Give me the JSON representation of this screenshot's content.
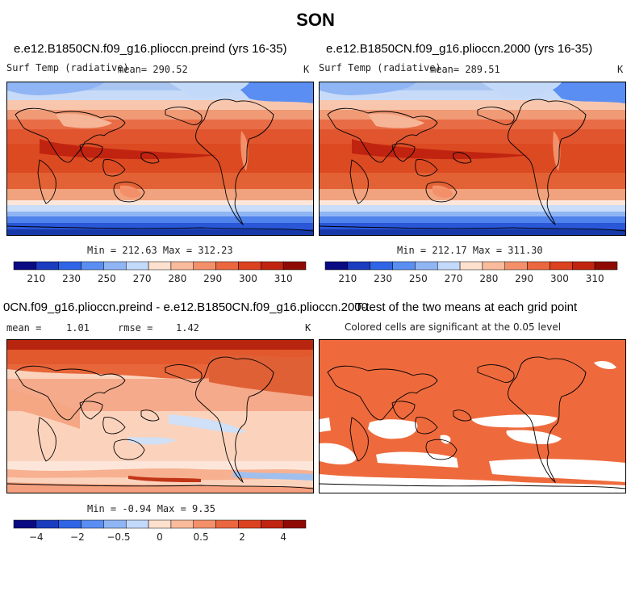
{
  "figure": {
    "title": "SON"
  },
  "chart_data": [
    {
      "type": "heatmap",
      "title": "e.e12.B1850CN.f09_g16.plioccn.preind (yrs 16-35)",
      "variable": "Surf Temp (radiative)",
      "mean_label": "mean= 290.52",
      "units": "K",
      "stats": "Min = 212.63 Max = 312.23",
      "min": 212.63,
      "max": 312.23,
      "mean": 290.52,
      "colorbar_ticks": [
        "210",
        "230",
        "250",
        "270",
        "280",
        "290",
        "300",
        "310"
      ],
      "colorbar_colors": [
        "#0a0a82",
        "#1a3cbe",
        "#2f64e6",
        "#5a8ef2",
        "#8fb5f5",
        "#c3d9fa",
        "#fde0cd",
        "#f9bb9b",
        "#f3906a",
        "#ea6740",
        "#dc4220",
        "#c02410",
        "#8f0a04"
      ]
    },
    {
      "type": "heatmap",
      "title": "e.e12.B1850CN.f09_g16.plioccn.2000 (yrs 16-35)",
      "variable": "Surf Temp (radiative)",
      "mean_label": "mean= 289.51",
      "units": "K",
      "stats": "Min = 212.17 Max = 311.30",
      "min": 212.17,
      "max": 311.3,
      "mean": 289.51,
      "colorbar_ticks": [
        "210",
        "230",
        "250",
        "270",
        "280",
        "290",
        "300",
        "310"
      ],
      "colorbar_colors": [
        "#0a0a82",
        "#1a3cbe",
        "#2f64e6",
        "#5a8ef2",
        "#8fb5f5",
        "#c3d9fa",
        "#fde0cd",
        "#f9bb9b",
        "#f3906a",
        "#ea6740",
        "#dc4220",
        "#c02410",
        "#8f0a04"
      ]
    },
    {
      "type": "heatmap",
      "title": "0CN.f09_g16.plioccn.preind - e.e12.B1850CN.f09_g16.plioccn.2000",
      "mean_label": "mean =",
      "mean_value": "1.01",
      "rmse_label": "rmse =",
      "rmse_value": "1.42",
      "units": "K",
      "stats": "Min =  -0.94 Max =   9.35",
      "min": -0.94,
      "max": 9.35,
      "mean": 1.01,
      "rmse": 1.42,
      "colorbar_ticks": [
        "−4",
        "−2",
        "−0.5",
        "0",
        "0.5",
        "2",
        "4"
      ],
      "colorbar_colors": [
        "#0a0a82",
        "#1a3cbe",
        "#2f64e6",
        "#5a8ef2",
        "#8fb5f5",
        "#c3d9fa",
        "#fde0cd",
        "#f9bb9b",
        "#f3906a",
        "#ea6740",
        "#dc4220",
        "#c02410",
        "#8f0a04"
      ]
    },
    {
      "type": "heatmap",
      "title": "T-test of the two means at each grid point",
      "subtitle": "Colored cells are significant at the 0.05 level",
      "significant_color": "#ee6a3c",
      "insignificant_color": "#ffffff"
    }
  ]
}
